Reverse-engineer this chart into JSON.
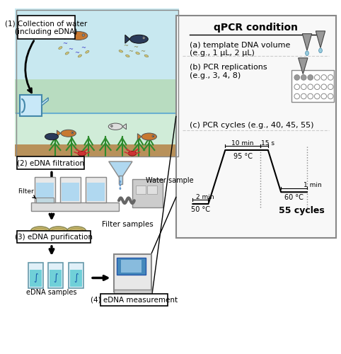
{
  "title": "qPCR condition",
  "bg_sky": "#c8e8f0",
  "bg_water": "#d0ecd8",
  "bg_sediment": "#b8915a",
  "bg_white": "#ffffff",
  "bg_panel": "#f5f5f5",
  "color_blue": "#87ceeb",
  "color_dark_blue": "#4a90c4",
  "color_gray": "#aaaaaa",
  "color_dark_gray": "#666666",
  "color_black": "#000000",
  "color_tan": "#c8b87a",
  "color_green": "#2d8b2d",
  "color_light_blue": "#b0d8f0",
  "color_teal": "#80c8c8",
  "step1_label": "(1) Collection of water\n(including eDNA)",
  "step2_label": "(2) eDNA filtration",
  "step3_label": "(3) eDNA purification",
  "step4_label": "(4) eDNA measurement",
  "filter_label": "Filter",
  "water_sample_label": "Water sample",
  "filter_samples_label": "Filter samples",
  "edna_samples_label": "eDNA samples",
  "qpcr_title": "qPCR condition",
  "a_label": "(a) template DNA volume\n(e.g., 1 μL, 2 μL)",
  "b_label": "(b) PCR replications\n(e.g., 3, 4, 8)",
  "c_label": "(c) PCR cycles (e.g., 40, 45, 55)",
  "temp1": "50 °C",
  "time1": "2 min",
  "temp2": "95 °C",
  "time2": "10 min",
  "time3": "15 s",
  "temp3": "60 °C",
  "time4": "1 min",
  "cycles": "55 cycles"
}
